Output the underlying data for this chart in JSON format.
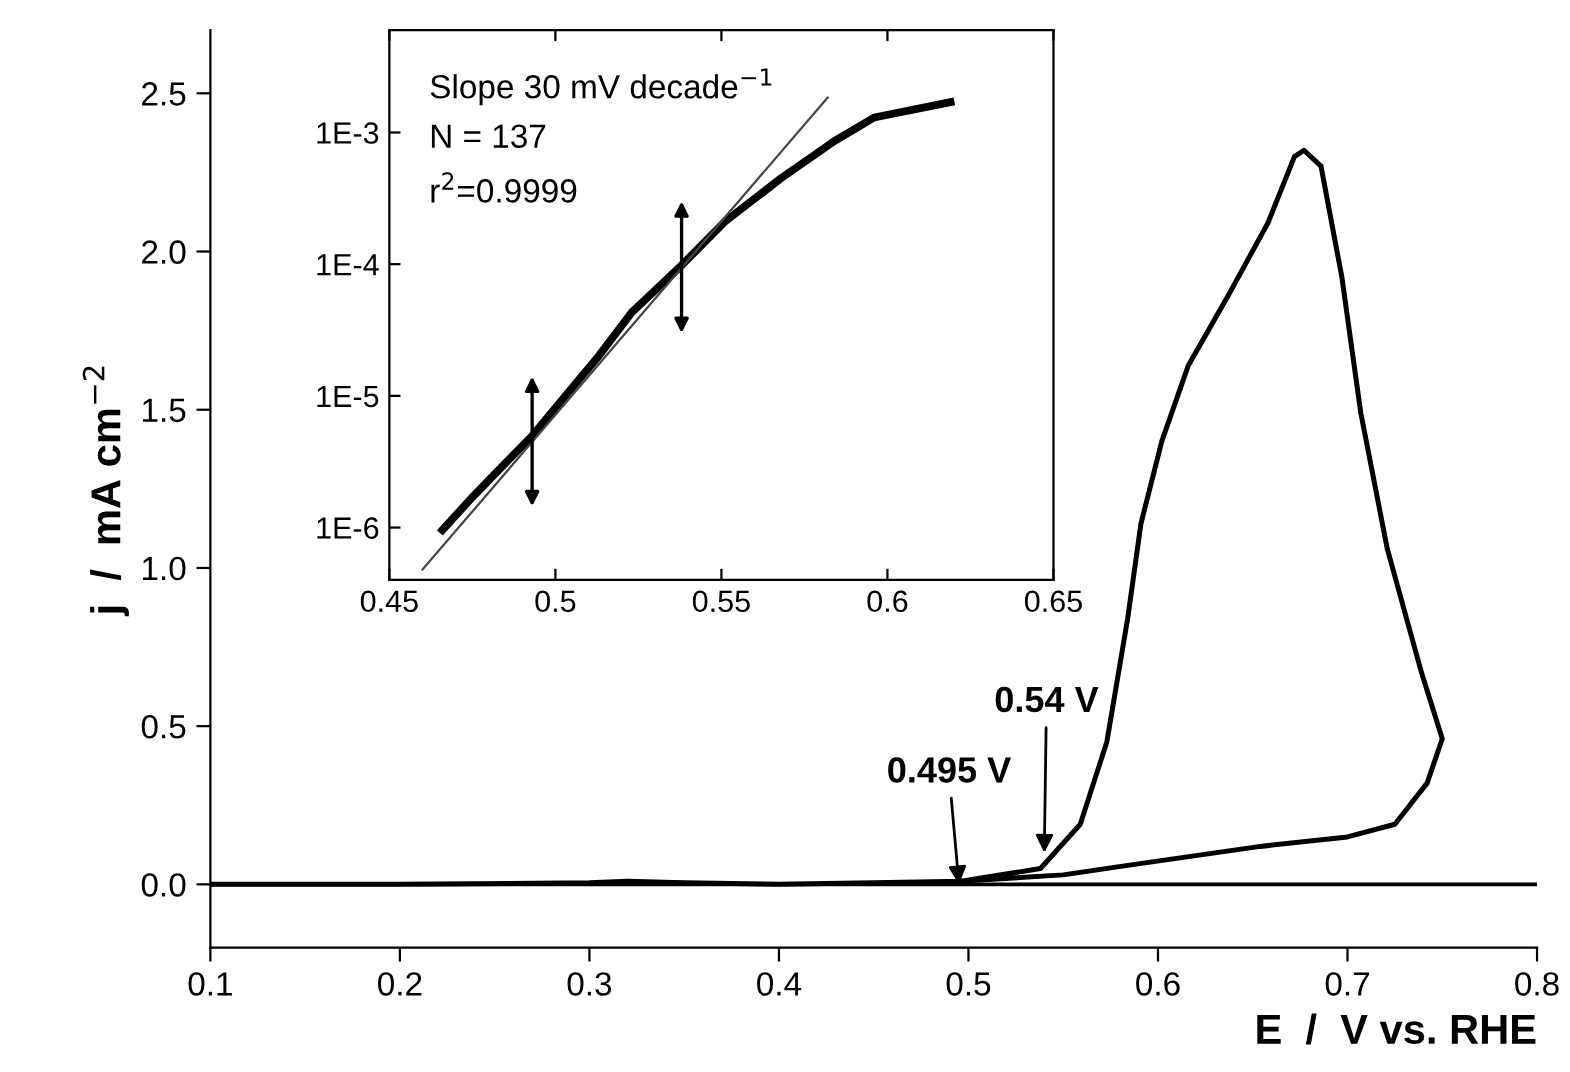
{
  "chart_data": [
    {
      "type": "line",
      "xlabel": "E  /  V vs. RHE",
      "ylabel": "j  /  mA cm$^{−2}$",
      "series": [
        {
          "color": "#000000",
          "x": [
            0.1,
            0.2,
            0.3,
            0.32,
            0.35,
            0.4,
            0.45,
            0.496,
            0.538,
            0.559,
            0.573,
            0.584,
            0.591,
            0.602,
            0.616,
            0.637,
            0.658,
            0.672,
            0.677,
            0.686,
            0.697,
            0.707,
            0.721,
            0.739,
            0.75,
            0.742,
            0.725,
            0.7,
            0.654,
            0.619,
            0.584,
            0.55,
            0.496
          ],
          "values": [
            0,
            0,
            0.005,
            0.01,
            0.005,
            0,
            0.005,
            0.01,
            0.05,
            0.19,
            0.45,
            0.84,
            1.14,
            1.4,
            1.64,
            1.86,
            2.09,
            2.3,
            2.32,
            2.27,
            1.92,
            1.49,
            1.06,
            0.67,
            0.46,
            0.32,
            0.19,
            0.15,
            0.12,
            0.09,
            0.06,
            0.03,
            0.01
          ]
        }
      ],
      "xlim": [
        0.1,
        0.8
      ],
      "ylim": [
        -0.2,
        2.7
      ],
      "xticks": [
        0.1,
        0.2,
        0.3,
        0.4,
        0.5,
        0.6,
        0.7,
        0.8
      ],
      "yticks": [
        {
          "value": 0,
          "label": "0.0"
        },
        0.5,
        {
          "value": 1,
          "label": "1.0"
        },
        1.5,
        {
          "value": 2,
          "label": "2.0"
        },
        2.5
      ],
      "ref_lines": [
        {
          "axis": "y",
          "value": 0,
          "color": "#000000"
        }
      ],
      "annotations": [
        {
          "text": "0.495 V",
          "x": 0.495,
          "y": 0
        },
        {
          "text": "0.54 V",
          "x": 0.54,
          "y": 0.1
        }
      ],
      "grid": false,
      "legend": false,
      "marker": "none",
      "line_style": "solid"
    },
    {
      "type": "line",
      "log": "y",
      "series": [
        {
          "color": "#000000",
          "x": [
            0.466,
            0.475,
            0.483,
            0.493,
            0.503,
            0.513,
            0.523,
            0.538,
            0.551,
            0.568,
            0.584,
            0.596,
            0.619
          ],
          "values": [
            9.6e-07,
            1.7e-06,
            2.75e-06,
            4.95e-06,
            1e-05,
            2e-05,
            4.3e-05,
            9.8e-05,
            0.00021,
            0.00045,
            0.00086,
            0.0013,
            0.0017
          ]
        },
        {
          "color": "#444444",
          "x": [
            0.46,
            0.582
          ],
          "values": [
            4.8e-07,
            0.00184
          ]
        }
      ],
      "xlim": [
        0.45,
        0.65
      ],
      "ylim": [
        4e-07,
        0.006
      ],
      "xticks": [
        0.45,
        0.5,
        0.55,
        0.6,
        0.65
      ],
      "yticks": [
        {
          "value": 1e-06,
          "label": "1E-6"
        },
        {
          "value": 1e-05,
          "label": "1E-5"
        },
        {
          "value": 0.0001,
          "label": "1E-4"
        },
        {
          "value": 0.001,
          "label": "1E-3"
        }
      ],
      "annotations": [
        "Slope 30 mV decade$^{−1}$",
        "N = 137",
        "r$^{2}$=0.9999"
      ],
      "grid": false,
      "legend": false,
      "marker": "none",
      "line_style": "solid"
    }
  ]
}
